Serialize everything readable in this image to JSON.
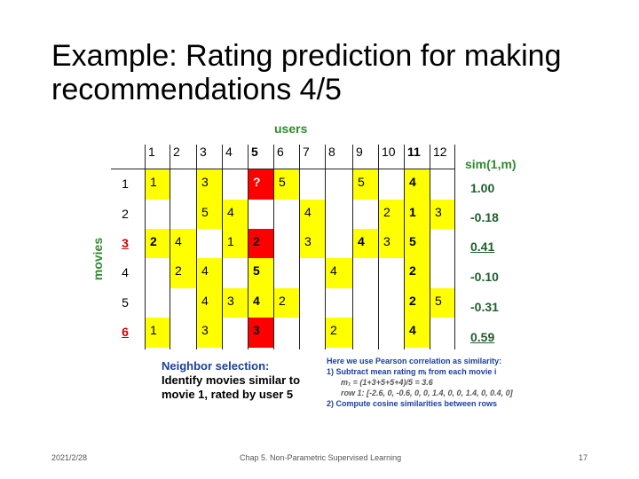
{
  "title": [
    "Example: Rating prediction for making",
    "recommendations 4/5"
  ],
  "users_label": "users",
  "movies_label": "movies",
  "user_headers": [
    "1",
    "2",
    "3",
    "4",
    "5",
    "6",
    "7",
    "8",
    "9",
    "10",
    "11",
    "12"
  ],
  "row_labels": [
    "1",
    "2",
    "3",
    "4",
    "5",
    "6"
  ],
  "sim_header": "sim(1,m)",
  "sim_values": [
    "1.00",
    "-0.18",
    "0.41",
    "-0.10",
    "-0.31",
    "0.59"
  ],
  "ratings": [
    [
      "1",
      "",
      "3",
      "",
      "?",
      "5",
      "",
      "",
      "5",
      "",
      "4",
      ""
    ],
    [
      "",
      "",
      "5",
      "4",
      "",
      "",
      "4",
      "",
      "",
      "2",
      "1",
      "3"
    ],
    [
      "2",
      "4",
      "",
      "1",
      "2",
      "",
      "3",
      "",
      "4",
      "3",
      "5",
      ""
    ],
    [
      "",
      "2",
      "4",
      "",
      "5",
      "",
      "",
      "4",
      "",
      "",
      "2",
      ""
    ],
    [
      "",
      "",
      "4",
      "3",
      "4",
      "2",
      "",
      "",
      "",
      "",
      "2",
      "5"
    ],
    [
      "1",
      "",
      "3",
      "",
      "3",
      "",
      "",
      "2",
      "",
      "",
      "4",
      ""
    ]
  ],
  "neighbor_selection": {
    "heading": "Neighbor selection:",
    "lines": [
      "Identify movies similar to",
      "movie 1, rated by user 5"
    ]
  },
  "pearson_note": {
    "lines": [
      "Here we use Pearson correlation as similarity:",
      "1) Subtract mean rating mᵢ from each movie i",
      "m₁ = (1+3+5+5+4)/5 = 3.6",
      "row 1: [-2.6, 0, -0.6, 0, 0, 1.4, 0, 0, 1.4, 0, 0.4, 0]",
      "2) Compute cosine similarities between rows"
    ]
  },
  "footer": {
    "date": "2021/2/28",
    "center": "Chap 5. Non-Parametric Supervised Learning",
    "page": "17"
  },
  "colors": {
    "highlight": "#ffff00",
    "target": "#ff0000",
    "accent": "#2e8b2e"
  }
}
